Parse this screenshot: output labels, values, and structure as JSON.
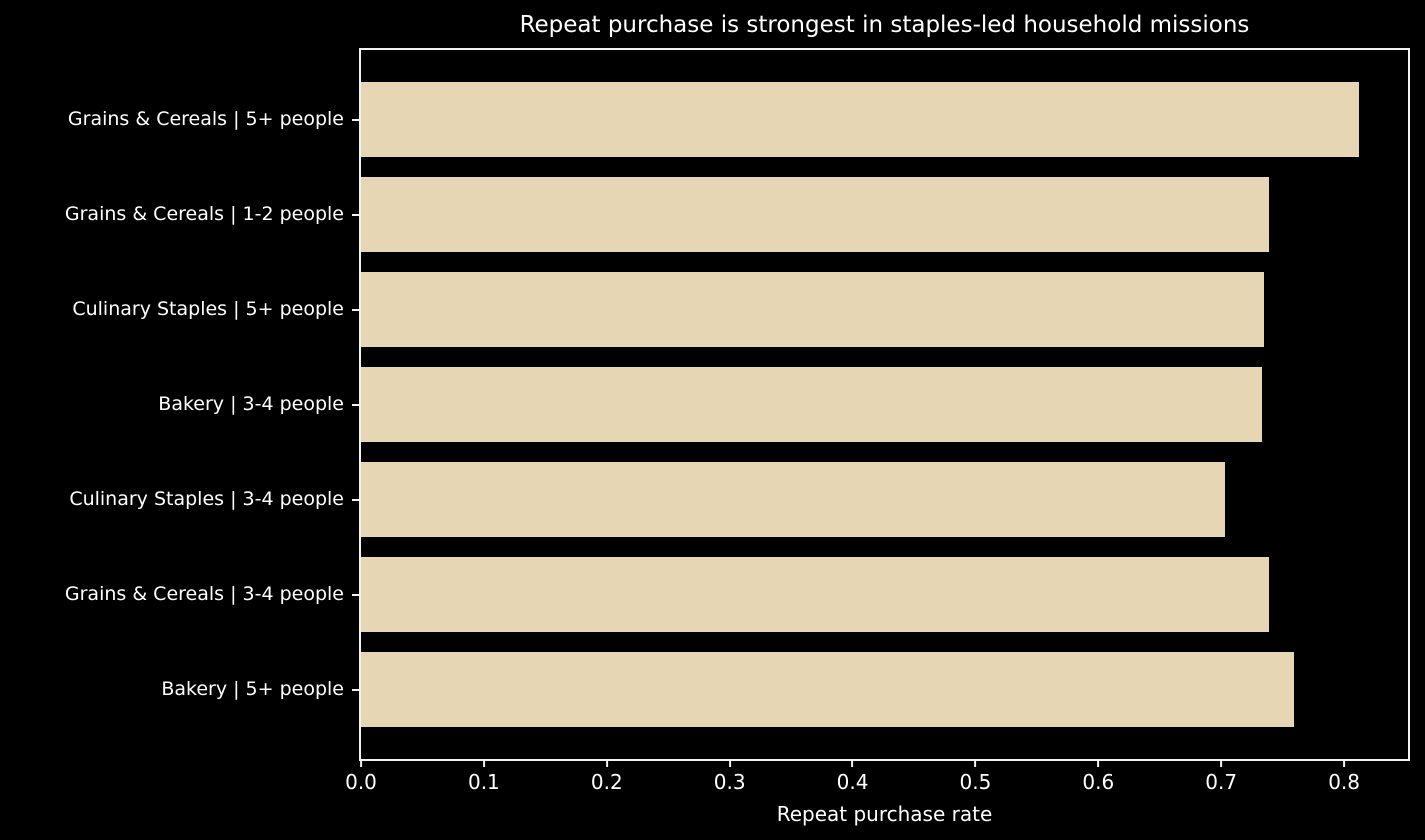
{
  "colors": {
    "background": "#000000",
    "text": "#ffffff",
    "spine": "#f2f2f2",
    "bar_fill": "#e6d6b4"
  },
  "chart_data": {
    "type": "bar",
    "orientation": "horizontal",
    "title": "Repeat purchase is strongest in staples-led household missions",
    "xlabel": "Repeat purchase rate",
    "ylabel": "",
    "categories": [
      "Grains & Cereals | 5+ people",
      "Grains & Cereals | 1-2 people",
      "Culinary Staples | 5+ people",
      "Bakery | 3-4 people",
      "Culinary Staples | 3-4 people",
      "Grains & Cereals | 3-4 people",
      "Bakery | 5+ people"
    ],
    "values": [
      0.812,
      0.739,
      0.735,
      0.733,
      0.703,
      0.739,
      0.759
    ],
    "xlim": [
      0,
      0.852
    ],
    "xticks": [
      0.0,
      0.1,
      0.2,
      0.3,
      0.4,
      0.5,
      0.6,
      0.7,
      0.8
    ],
    "xtick_labels": [
      "0.0",
      "0.1",
      "0.2",
      "0.3",
      "0.4",
      "0.5",
      "0.6",
      "0.7",
      "0.8"
    ],
    "grid": false,
    "legend": null,
    "bar_color_name": "wheat",
    "style": "dark background, white spines and labels, single series"
  }
}
